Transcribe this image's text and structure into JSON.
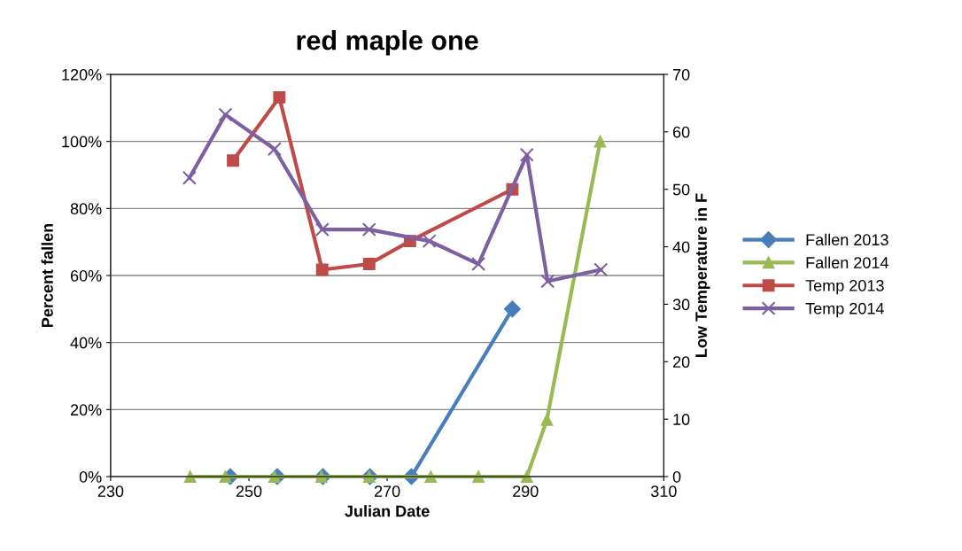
{
  "chart_data": {
    "type": "line",
    "title": "red maple one",
    "xlabel": "Julian Date",
    "ylabel": "Percent fallen",
    "y2label": "Low Temperature in F",
    "xlim": [
      230,
      310
    ],
    "xticks": [
      230,
      250,
      270,
      290,
      310
    ],
    "ylim": [
      0,
      120
    ],
    "yticks": [
      {
        "value": 0,
        "label": "0%"
      },
      {
        "value": 20,
        "label": "20%"
      },
      {
        "value": 40,
        "label": "40%"
      },
      {
        "value": 60,
        "label": "60%"
      },
      {
        "value": 80,
        "label": "80%"
      },
      {
        "value": 100,
        "label": "100%"
      },
      {
        "value": 120,
        "label": "120%"
      }
    ],
    "y2lim": [
      0,
      70
    ],
    "y2ticks": [
      0,
      10,
      20,
      30,
      40,
      50,
      60,
      70
    ],
    "grid": "y",
    "legend": "right",
    "line_style": "solid",
    "series": [
      {
        "name": "Fallen 2013",
        "color": "#4a7ebb",
        "marker": "diamond",
        "x": [
          247.3,
          254.1,
          260.7,
          267.5,
          273.5,
          288.1
        ],
        "values": [
          0,
          0,
          0,
          0,
          0,
          50
        ]
      },
      {
        "name": "Fallen 2014",
        "color": "#98b954",
        "marker": "triangle",
        "x": [
          241.5,
          246.6,
          253.7,
          260.5,
          267.4,
          276.3,
          283.2,
          290.2,
          293.1,
          300.8
        ],
        "values": [
          0,
          0,
          0,
          0,
          0,
          0,
          0,
          0,
          17,
          100
        ]
      },
      {
        "name": "Temp 2013",
        "color": "#be4b48",
        "marker": "square",
        "axis": "y2",
        "x": [
          247.7,
          254.4,
          260.6,
          267.4,
          273.3,
          288.1
        ],
        "values": [
          55,
          66,
          36,
          37,
          41,
          50
        ]
      },
      {
        "name": "Temp 2014",
        "color": "#7d60a0",
        "marker": "cross",
        "axis": "y2",
        "x": [
          241.4,
          246.6,
          253.7,
          260.6,
          267.4,
          276.1,
          283.2,
          290.2,
          293.2,
          300.9
        ],
        "values": [
          52,
          63,
          57,
          43,
          43,
          41,
          37,
          56,
          34,
          36
        ]
      }
    ]
  }
}
